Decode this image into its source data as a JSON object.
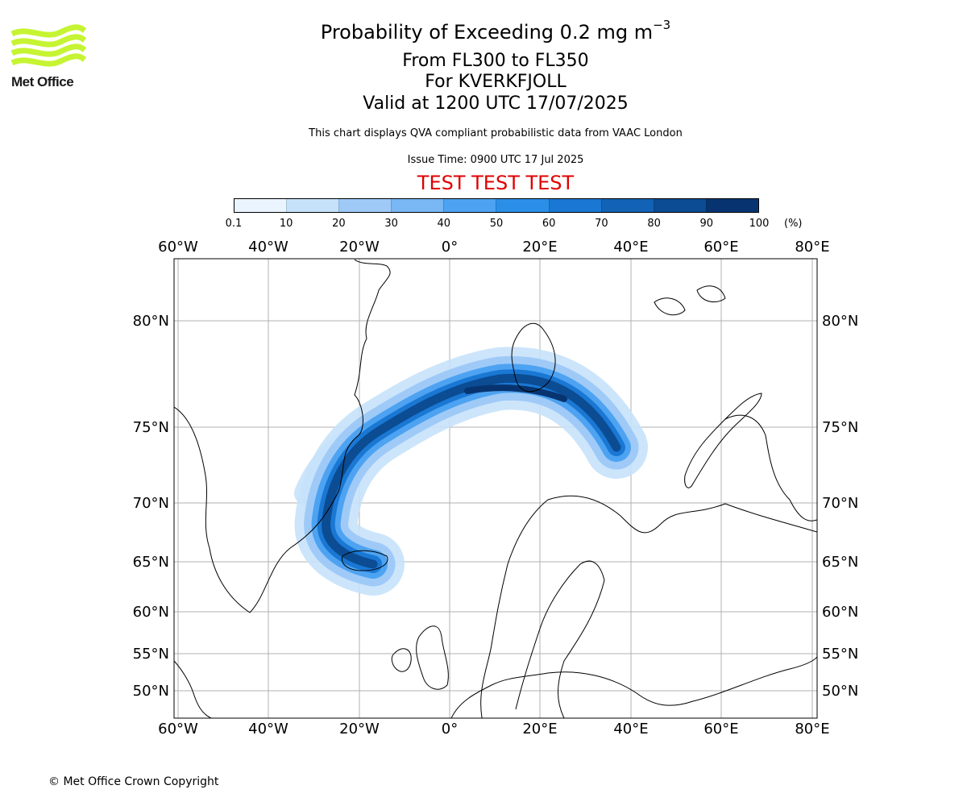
{
  "logo": {
    "text": "Met Office",
    "color": "#c6f432"
  },
  "title": {
    "main": "Probability of Exceeding 0.2 mg m",
    "superscript": "−3"
  },
  "subtitle_levels": "From FL300 to FL350",
  "subtitle_volcano": "For KVERKFJOLL",
  "subtitle_valid": "Valid at 1200 UTC 17/07/2025",
  "disclaimer": "This chart displays QVA compliant probabilistic data from VAAC London",
  "issue_time": "Issue Time: 0900 UTC 17 Jul 2025",
  "test_banner": "TEST TEST TEST",
  "colorbar": {
    "ticks": [
      "0.1",
      "10",
      "20",
      "30",
      "40",
      "50",
      "60",
      "70",
      "80",
      "90",
      "100"
    ],
    "unit": "(%)",
    "colors": [
      "#eaf4ff",
      "#c6e2fb",
      "#9fcaf7",
      "#78b6f4",
      "#4da3f1",
      "#2b8fe8",
      "#1a78d4",
      "#1262b5",
      "#0b4c93",
      "#073470"
    ]
  },
  "map": {
    "lon_labels": [
      "60°W",
      "40°W",
      "20°W",
      "0°",
      "20°E",
      "40°E",
      "60°E",
      "80°E"
    ],
    "lat_labels": [
      "80°N",
      "75°N",
      "70°N",
      "65°N",
      "60°N",
      "55°N",
      "50°N"
    ]
  },
  "copyright": "© Met Office Crown Copyright"
}
